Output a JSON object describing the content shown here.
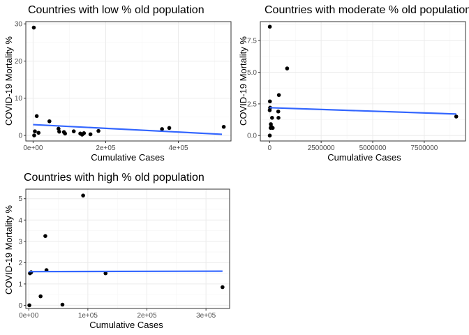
{
  "chart_data": [
    {
      "type": "scatter",
      "title": "Countries with low % old population",
      "xlabel": "Cumulative Cases",
      "ylabel": "COVID-19 Mortality %",
      "xlim": [
        -20000,
        545000
      ],
      "ylim": [
        -1.5,
        30.6
      ],
      "x_ticks": [
        0,
        200000,
        400000
      ],
      "x_tick_labels": [
        "0e+00",
        "2e+05",
        "4e+05"
      ],
      "y_ticks": [
        0,
        10,
        20,
        30
      ],
      "y_tick_labels": [
        "0",
        "10",
        "20",
        "30"
      ],
      "grid": true,
      "points": [
        {
          "x": 2000,
          "y": 29.0
        },
        {
          "x": 5000,
          "y": 1.1
        },
        {
          "x": 3000,
          "y": 0.0
        },
        {
          "x": 10000,
          "y": 5.2
        },
        {
          "x": 15000,
          "y": 0.7
        },
        {
          "x": 45000,
          "y": 3.8
        },
        {
          "x": 70000,
          "y": 1.8
        },
        {
          "x": 72000,
          "y": 1.0
        },
        {
          "x": 85000,
          "y": 0.9
        },
        {
          "x": 88000,
          "y": 0.5
        },
        {
          "x": 112000,
          "y": 1.1
        },
        {
          "x": 130000,
          "y": 0.5
        },
        {
          "x": 135000,
          "y": 0.2
        },
        {
          "x": 140000,
          "y": 0.6
        },
        {
          "x": 158000,
          "y": 0.3
        },
        {
          "x": 180000,
          "y": 1.2
        },
        {
          "x": 355000,
          "y": 1.7
        },
        {
          "x": 375000,
          "y": 2.0
        },
        {
          "x": 525000,
          "y": 2.3
        }
      ],
      "fit": {
        "x": [
          0,
          520000
        ],
        "y": [
          2.9,
          0.3
        ]
      }
    },
    {
      "type": "scatter",
      "title": "Countries with moderate % old population",
      "xlabel": "Cumulative Cases",
      "ylabel": "COVID-19 Mortality %",
      "xlim": [
        -450000,
        9500000
      ],
      "ylim": [
        -0.43,
        9.0
      ],
      "x_ticks": [
        0,
        2500000,
        5000000,
        7500000
      ],
      "x_tick_labels": [
        "0",
        "2500000",
        "5000000",
        "7500000"
      ],
      "y_ticks": [
        0,
        2.5,
        5,
        7.5
      ],
      "y_tick_labels": [
        "0.0",
        "2.5",
        "5.0",
        "7.5"
      ],
      "grid": true,
      "points": [
        {
          "x": 10000,
          "y": 8.6
        },
        {
          "x": 15000,
          "y": 2.7
        },
        {
          "x": 5000,
          "y": 2.0
        },
        {
          "x": 25000,
          "y": 2.2
        },
        {
          "x": 60000,
          "y": 0.9
        },
        {
          "x": 50000,
          "y": 0.6
        },
        {
          "x": 8000,
          "y": 0.0
        },
        {
          "x": 80000,
          "y": 0.7
        },
        {
          "x": 120000,
          "y": 1.4
        },
        {
          "x": 150000,
          "y": 0.6
        },
        {
          "x": 450000,
          "y": 3.2
        },
        {
          "x": 420000,
          "y": 1.9
        },
        {
          "x": 430000,
          "y": 1.4
        },
        {
          "x": 850000,
          "y": 5.3
        },
        {
          "x": 9050000,
          "y": 1.5
        }
      ],
      "fit": {
        "x": [
          0,
          9050000
        ],
        "y": [
          2.2,
          1.7
        ]
      }
    },
    {
      "type": "scatter",
      "title": "Countries with high % old population",
      "xlabel": "Cumulative Cases",
      "ylabel": "COVID-19 Mortality %",
      "xlim": [
        -5000,
        340000
      ],
      "ylim": [
        -0.15,
        5.45
      ],
      "x_ticks": [
        0,
        100000,
        200000,
        300000
      ],
      "x_tick_labels": [
        "0e+00",
        "1e+05",
        "2e+05",
        "3e+05"
      ],
      "y_ticks": [
        0,
        1,
        2,
        3,
        4,
        5
      ],
      "y_tick_labels": [
        "0",
        "1",
        "2",
        "3",
        "4",
        "5"
      ],
      "grid": true,
      "points": [
        {
          "x": 1000,
          "y": 0.0
        },
        {
          "x": 2000,
          "y": 1.5
        },
        {
          "x": 4000,
          "y": 1.55
        },
        {
          "x": 20000,
          "y": 0.42
        },
        {
          "x": 28000,
          "y": 3.25
        },
        {
          "x": 30000,
          "y": 1.65
        },
        {
          "x": 57000,
          "y": 0.03
        },
        {
          "x": 92000,
          "y": 5.15
        },
        {
          "x": 130000,
          "y": 1.5
        },
        {
          "x": 328000,
          "y": 0.85
        }
      ],
      "fit": {
        "x": [
          0,
          328000
        ],
        "y": [
          1.58,
          1.6
        ]
      }
    }
  ]
}
